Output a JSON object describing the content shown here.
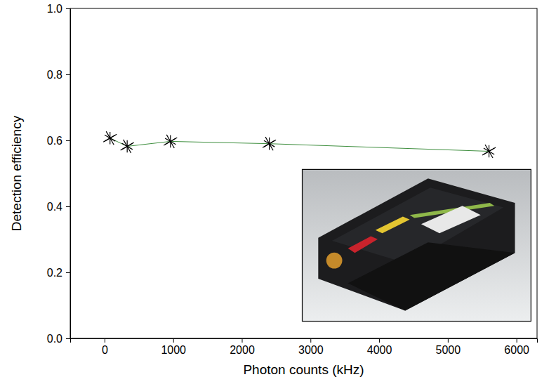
{
  "chart_data": {
    "type": "line",
    "x_label": "Photon counts (kHz)",
    "y_label": "Detection efficiency",
    "x": [
      80,
      330,
      960,
      2400,
      5600
    ],
    "values": [
      0.607,
      0.582,
      0.597,
      0.59,
      0.567
    ],
    "color": "#3f8f3f",
    "marker": "asterisk",
    "line_style": "solid",
    "xlim": [
      -500,
      6300
    ],
    "xticks": [
      0,
      1000,
      2000,
      3000,
      4000,
      5000,
      6000
    ],
    "ylim": [
      0,
      1
    ],
    "yticks": [
      {
        "value": 0,
        "label": "0.0"
      },
      0.2,
      0.4,
      0.6,
      0.8,
      {
        "value": 1,
        "label": "1.0"
      }
    ],
    "grid": false
  }
}
